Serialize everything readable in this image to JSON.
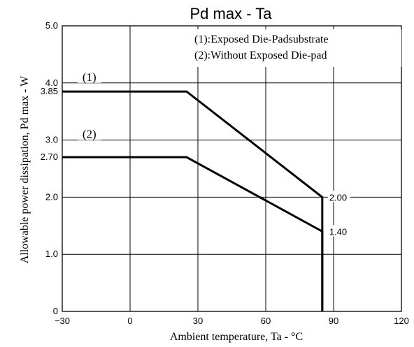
{
  "chart_data": {
    "type": "line",
    "title": "Pd max  -  Ta",
    "xlabel": "Ambient temperature, Ta - °C",
    "ylabel": "Allowable power dissipation, Pd max - W",
    "xlim": [
      -30,
      120
    ],
    "ylim": [
      0,
      5.0
    ],
    "x_ticks": [
      -30,
      0,
      30,
      60,
      90,
      120
    ],
    "x_tick_labels": [
      "−30",
      "0",
      "30",
      "60",
      "90",
      "120"
    ],
    "y_ticks": [
      0,
      1.0,
      2.0,
      3.0,
      4.0,
      5.0
    ],
    "y_tick_labels": [
      "0",
      "1.0",
      "2.0",
      "3.0",
      "4.0",
      "5.0"
    ],
    "y_extra_ticks": [
      {
        "value": 3.85,
        "label": "3.85"
      },
      {
        "value": 2.7,
        "label": "2.70"
      }
    ],
    "grid": true,
    "legend_lines": [
      "(1):Exposed Die-Padsubstrate",
      "(2):Without Exposed Die-pad"
    ],
    "series": [
      {
        "name": "(1)",
        "x": [
          -30,
          25,
          85,
          85
        ],
        "y": [
          3.85,
          3.85,
          2.0,
          0
        ]
      },
      {
        "name": "(2)",
        "x": [
          -30,
          25,
          85,
          85
        ],
        "y": [
          2.7,
          2.7,
          1.4,
          0
        ]
      }
    ],
    "annotations": [
      {
        "label": "(1)",
        "x": -18,
        "y": 4.0
      },
      {
        "label": "(2)",
        "x": -18,
        "y": 3.0
      },
      {
        "label": "2.00",
        "x": 85,
        "y": 2.0
      },
      {
        "label": "1.40",
        "x": 85,
        "y": 1.4
      }
    ]
  }
}
